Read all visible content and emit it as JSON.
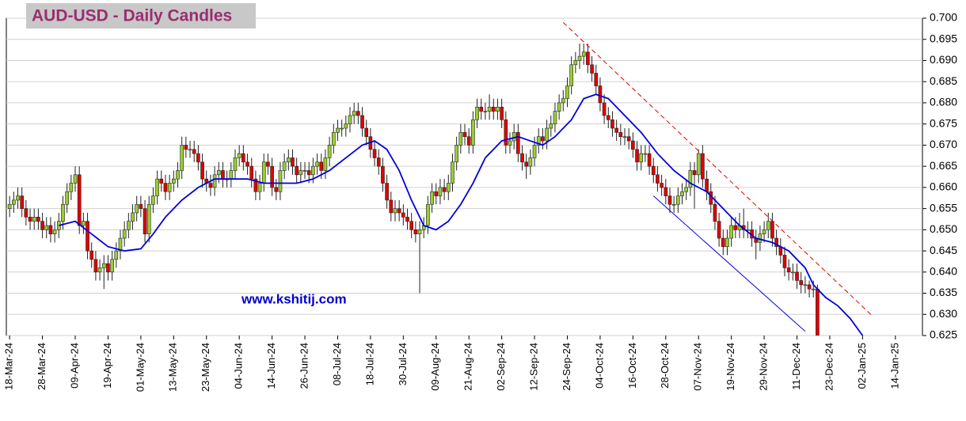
{
  "chart_data": {
    "type": "candlestick",
    "title": "AUD-USD - Daily Candles",
    "annotation": "www.kshitij.com",
    "up_color": "#9acd32",
    "down_color": "#e00000",
    "grid": true,
    "ylim": [
      0.625,
      0.7
    ],
    "yticks": [
      0.625,
      {
        "value": 0.63,
        "label": "0.630"
      },
      0.635,
      {
        "value": 0.64,
        "label": "0.640"
      },
      0.645,
      {
        "value": 0.65,
        "label": "0.650"
      },
      0.655,
      {
        "value": 0.66,
        "label": "0.660"
      },
      0.665,
      {
        "value": 0.67,
        "label": "0.670"
      },
      0.675,
      {
        "value": 0.68,
        "label": "0.680"
      },
      0.685,
      {
        "value": 0.69,
        "label": "0.690"
      },
      0.695,
      {
        "value": 0.7,
        "label": "0.700"
      }
    ],
    "xlim": [
      -0.8,
      222.6
    ],
    "xticks": [
      {
        "value": 0,
        "label": "18-Mar-24"
      },
      {
        "value": 8,
        "label": "28-Mar-24"
      },
      {
        "value": 16,
        "label": "09-Apr-24"
      },
      {
        "value": 24,
        "label": "19-Apr-24"
      },
      {
        "value": 32,
        "label": "01-May-24"
      },
      {
        "value": 40,
        "label": "13-May-24"
      },
      {
        "value": 48,
        "label": "23-May-24"
      },
      {
        "value": 56,
        "label": "04-Jun-24"
      },
      {
        "value": 64,
        "label": "14-Jun-24"
      },
      {
        "value": 72,
        "label": "26-Jun-24"
      },
      {
        "value": 80,
        "label": "08-Jul-24"
      },
      {
        "value": 88,
        "label": "18-Jul-24"
      },
      {
        "value": 96,
        "label": "30-Jul-24"
      },
      {
        "value": 104,
        "label": "09-Aug-24"
      },
      {
        "value": 112,
        "label": "21-Aug-24"
      },
      {
        "value": 120,
        "label": "02-Sep-24"
      },
      {
        "value": 128,
        "label": "12-Sep-24"
      },
      {
        "value": 136,
        "label": "24-Sep-24"
      },
      {
        "value": 144,
        "label": "04-Oct-24"
      },
      {
        "value": 152,
        "label": "16-Oct-24"
      },
      {
        "value": 160,
        "label": "28-Oct-24"
      },
      {
        "value": 168,
        "label": "07-Nov-24"
      },
      {
        "value": 176,
        "label": "19-Nov-24"
      },
      {
        "value": 184,
        "label": "29-Nov-24"
      },
      {
        "value": 192,
        "label": "11-Dec-24"
      },
      {
        "value": 200,
        "label": "23-Dec-24"
      },
      {
        "value": 208,
        "label": "02-Jan-25"
      },
      {
        "value": 216,
        "label": "14-Jan-25"
      }
    ],
    "ohlc": [
      [
        0.655,
        0.658,
        0.653,
        0.656
      ],
      [
        0.656,
        0.659,
        0.654,
        0.657
      ],
      [
        0.657,
        0.66,
        0.655,
        0.658
      ],
      [
        0.658,
        0.66,
        0.653,
        0.655
      ],
      [
        0.655,
        0.657,
        0.651,
        0.653
      ],
      [
        0.653,
        0.655,
        0.65,
        0.652
      ],
      [
        0.652,
        0.655,
        0.65,
        0.653
      ],
      [
        0.653,
        0.655,
        0.65,
        0.652
      ],
      [
        0.652,
        0.654,
        0.648,
        0.65
      ],
      [
        0.65,
        0.653,
        0.648,
        0.651
      ],
      [
        0.651,
        0.653,
        0.647,
        0.649
      ],
      [
        0.649,
        0.652,
        0.647,
        0.65
      ],
      [
        0.65,
        0.654,
        0.648,
        0.652
      ],
      [
        0.652,
        0.658,
        0.65,
        0.656
      ],
      [
        0.656,
        0.661,
        0.654,
        0.659
      ],
      [
        0.659,
        0.663,
        0.657,
        0.661
      ],
      [
        0.661,
        0.665,
        0.659,
        0.663
      ],
      [
        0.663,
        0.665,
        0.649,
        0.651
      ],
      [
        0.651,
        0.654,
        0.649,
        0.652
      ],
      [
        0.652,
        0.654,
        0.643,
        0.645
      ],
      [
        0.645,
        0.647,
        0.641,
        0.643
      ],
      [
        0.643,
        0.645,
        0.638,
        0.64
      ],
      [
        0.64,
        0.643,
        0.638,
        0.641
      ],
      [
        0.641,
        0.644,
        0.636,
        0.642
      ],
      [
        0.642,
        0.644,
        0.638,
        0.64
      ],
      [
        0.64,
        0.645,
        0.638,
        0.643
      ],
      [
        0.643,
        0.647,
        0.641,
        0.645
      ],
      [
        0.645,
        0.65,
        0.643,
        0.648
      ],
      [
        0.648,
        0.652,
        0.646,
        0.65
      ],
      [
        0.65,
        0.654,
        0.648,
        0.652
      ],
      [
        0.652,
        0.656,
        0.65,
        0.654
      ],
      [
        0.654,
        0.658,
        0.652,
        0.656
      ],
      [
        0.656,
        0.658,
        0.653,
        0.655
      ],
      [
        0.655,
        0.657,
        0.647,
        0.649
      ],
      [
        0.649,
        0.658,
        0.647,
        0.656
      ],
      [
        0.656,
        0.66,
        0.654,
        0.658
      ],
      [
        0.658,
        0.664,
        0.656,
        0.662
      ],
      [
        0.662,
        0.664,
        0.659,
        0.661
      ],
      [
        0.661,
        0.663,
        0.657,
        0.659
      ],
      [
        0.659,
        0.663,
        0.657,
        0.661
      ],
      [
        0.661,
        0.664,
        0.659,
        0.662
      ],
      [
        0.662,
        0.666,
        0.66,
        0.664
      ],
      [
        0.664,
        0.672,
        0.662,
        0.67
      ],
      [
        0.67,
        0.672,
        0.667,
        0.669
      ],
      [
        0.669,
        0.671,
        0.667,
        0.669
      ],
      [
        0.669,
        0.671,
        0.666,
        0.668
      ],
      [
        0.668,
        0.67,
        0.664,
        0.666
      ],
      [
        0.666,
        0.668,
        0.66,
        0.662
      ],
      [
        0.662,
        0.664,
        0.659,
        0.661
      ],
      [
        0.661,
        0.663,
        0.658,
        0.66
      ],
      [
        0.66,
        0.665,
        0.658,
        0.663
      ],
      [
        0.663,
        0.666,
        0.661,
        0.664
      ],
      [
        0.664,
        0.666,
        0.66,
        0.662
      ],
      [
        0.662,
        0.664,
        0.66,
        0.662
      ],
      [
        0.662,
        0.666,
        0.66,
        0.664
      ],
      [
        0.664,
        0.669,
        0.662,
        0.667
      ],
      [
        0.667,
        0.67,
        0.665,
        0.668
      ],
      [
        0.668,
        0.67,
        0.664,
        0.666
      ],
      [
        0.666,
        0.668,
        0.663,
        0.665
      ],
      [
        0.665,
        0.667,
        0.66,
        0.662
      ],
      [
        0.662,
        0.664,
        0.657,
        0.659
      ],
      [
        0.659,
        0.663,
        0.657,
        0.661
      ],
      [
        0.661,
        0.668,
        0.659,
        0.666
      ],
      [
        0.666,
        0.668,
        0.663,
        0.665
      ],
      [
        0.665,
        0.667,
        0.658,
        0.66
      ],
      [
        0.66,
        0.662,
        0.657,
        0.659
      ],
      [
        0.659,
        0.666,
        0.657,
        0.664
      ],
      [
        0.664,
        0.668,
        0.662,
        0.666
      ],
      [
        0.666,
        0.669,
        0.664,
        0.667
      ],
      [
        0.667,
        0.669,
        0.663,
        0.665
      ],
      [
        0.665,
        0.667,
        0.661,
        0.663
      ],
      [
        0.663,
        0.666,
        0.661,
        0.664
      ],
      [
        0.664,
        0.666,
        0.662,
        0.664
      ],
      [
        0.664,
        0.666,
        0.661,
        0.663
      ],
      [
        0.663,
        0.667,
        0.661,
        0.665
      ],
      [
        0.665,
        0.668,
        0.663,
        0.666
      ],
      [
        0.666,
        0.668,
        0.662,
        0.664
      ],
      [
        0.664,
        0.669,
        0.662,
        0.667
      ],
      [
        0.667,
        0.672,
        0.665,
        0.67
      ],
      [
        0.67,
        0.675,
        0.668,
        0.673
      ],
      [
        0.673,
        0.676,
        0.671,
        0.674
      ],
      [
        0.674,
        0.676,
        0.672,
        0.674
      ],
      [
        0.674,
        0.677,
        0.672,
        0.675
      ],
      [
        0.675,
        0.679,
        0.673,
        0.677
      ],
      [
        0.677,
        0.68,
        0.675,
        0.678
      ],
      [
        0.678,
        0.68,
        0.675,
        0.677
      ],
      [
        0.677,
        0.679,
        0.672,
        0.674
      ],
      [
        0.674,
        0.676,
        0.67,
        0.672
      ],
      [
        0.672,
        0.674,
        0.667,
        0.669
      ],
      [
        0.669,
        0.671,
        0.665,
        0.667
      ],
      [
        0.667,
        0.669,
        0.663,
        0.665
      ],
      [
        0.665,
        0.667,
        0.659,
        0.661
      ],
      [
        0.661,
        0.663,
        0.655,
        0.657
      ],
      [
        0.657,
        0.659,
        0.652,
        0.654
      ],
      [
        0.654,
        0.657,
        0.652,
        0.655
      ],
      [
        0.655,
        0.657,
        0.652,
        0.654
      ],
      [
        0.654,
        0.656,
        0.651,
        0.653
      ],
      [
        0.653,
        0.655,
        0.65,
        0.652
      ],
      [
        0.652,
        0.654,
        0.648,
        0.65
      ],
      [
        0.65,
        0.652,
        0.647,
        0.649
      ],
      [
        0.649,
        0.652,
        0.635,
        0.65
      ],
      [
        0.65,
        0.653,
        0.648,
        0.651
      ],
      [
        0.651,
        0.658,
        0.649,
        0.656
      ],
      [
        0.656,
        0.661,
        0.654,
        0.659
      ],
      [
        0.659,
        0.661,
        0.656,
        0.658
      ],
      [
        0.658,
        0.662,
        0.656,
        0.66
      ],
      [
        0.66,
        0.662,
        0.657,
        0.659
      ],
      [
        0.659,
        0.663,
        0.657,
        0.661
      ],
      [
        0.661,
        0.668,
        0.659,
        0.666
      ],
      [
        0.666,
        0.672,
        0.664,
        0.67
      ],
      [
        0.67,
        0.675,
        0.668,
        0.673
      ],
      [
        0.673,
        0.675,
        0.67,
        0.672
      ],
      [
        0.672,
        0.674,
        0.668,
        0.67
      ],
      [
        0.67,
        0.678,
        0.668,
        0.676
      ],
      [
        0.676,
        0.681,
        0.674,
        0.679
      ],
      [
        0.679,
        0.681,
        0.676,
        0.678
      ],
      [
        0.678,
        0.68,
        0.676,
        0.678
      ],
      [
        0.678,
        0.682,
        0.676,
        0.679
      ],
      [
        0.679,
        0.681,
        0.676,
        0.678
      ],
      [
        0.678,
        0.681,
        0.676,
        0.679
      ],
      [
        0.679,
        0.681,
        0.674,
        0.676
      ],
      [
        0.676,
        0.678,
        0.668,
        0.67
      ],
      [
        0.67,
        0.673,
        0.668,
        0.671
      ],
      [
        0.671,
        0.675,
        0.669,
        0.673
      ],
      [
        0.673,
        0.675,
        0.666,
        0.668
      ],
      [
        0.668,
        0.67,
        0.664,
        0.666
      ],
      [
        0.666,
        0.668,
        0.662,
        0.665
      ],
      [
        0.665,
        0.669,
        0.663,
        0.667
      ],
      [
        0.667,
        0.672,
        0.665,
        0.67
      ],
      [
        0.67,
        0.674,
        0.668,
        0.672
      ],
      [
        0.672,
        0.674,
        0.669,
        0.671
      ],
      [
        0.671,
        0.676,
        0.669,
        0.674
      ],
      [
        0.674,
        0.677,
        0.672,
        0.675
      ],
      [
        0.675,
        0.68,
        0.673,
        0.678
      ],
      [
        0.678,
        0.682,
        0.676,
        0.68
      ],
      [
        0.68,
        0.683,
        0.678,
        0.681
      ],
      [
        0.681,
        0.686,
        0.679,
        0.684
      ],
      [
        0.684,
        0.691,
        0.682,
        0.689
      ],
      [
        0.689,
        0.692,
        0.687,
        0.69
      ],
      [
        0.69,
        0.694,
        0.688,
        0.691
      ],
      [
        0.691,
        0.694,
        0.689,
        0.692
      ],
      [
        0.692,
        0.694,
        0.687,
        0.689
      ],
      [
        0.689,
        0.691,
        0.685,
        0.687
      ],
      [
        0.687,
        0.689,
        0.682,
        0.684
      ],
      [
        0.684,
        0.686,
        0.678,
        0.68
      ],
      [
        0.68,
        0.682,
        0.675,
        0.677
      ],
      [
        0.677,
        0.679,
        0.674,
        0.676
      ],
      [
        0.676,
        0.678,
        0.672,
        0.674
      ],
      [
        0.674,
        0.676,
        0.671,
        0.673
      ],
      [
        0.673,
        0.675,
        0.67,
        0.672
      ],
      [
        0.672,
        0.674,
        0.67,
        0.672
      ],
      [
        0.672,
        0.674,
        0.669,
        0.671
      ],
      [
        0.671,
        0.673,
        0.667,
        0.669
      ],
      [
        0.669,
        0.671,
        0.664,
        0.666
      ],
      [
        0.666,
        0.67,
        0.664,
        0.668
      ],
      [
        0.668,
        0.67,
        0.666,
        0.668
      ],
      [
        0.668,
        0.67,
        0.663,
        0.665
      ],
      [
        0.665,
        0.667,
        0.661,
        0.663
      ],
      [
        0.663,
        0.665,
        0.659,
        0.661
      ],
      [
        0.661,
        0.663,
        0.658,
        0.66
      ],
      [
        0.66,
        0.662,
        0.656,
        0.658
      ],
      [
        0.658,
        0.66,
        0.654,
        0.656
      ],
      [
        0.656,
        0.658,
        0.654,
        0.656
      ],
      [
        0.656,
        0.66,
        0.654,
        0.658
      ],
      [
        0.658,
        0.661,
        0.656,
        0.659
      ],
      [
        0.659,
        0.662,
        0.657,
        0.66
      ],
      [
        0.66,
        0.666,
        0.658,
        0.664
      ],
      [
        0.664,
        0.666,
        0.655,
        0.663
      ],
      [
        0.663,
        0.669,
        0.661,
        0.668
      ],
      [
        0.668,
        0.67,
        0.66,
        0.662
      ],
      [
        0.662,
        0.664,
        0.657,
        0.659
      ],
      [
        0.659,
        0.661,
        0.654,
        0.656
      ],
      [
        0.656,
        0.658,
        0.65,
        0.652
      ],
      [
        0.652,
        0.654,
        0.646,
        0.648
      ],
      [
        0.648,
        0.65,
        0.644,
        0.646
      ],
      [
        0.646,
        0.65,
        0.644,
        0.648
      ],
      [
        0.648,
        0.653,
        0.646,
        0.651
      ],
      [
        0.651,
        0.653,
        0.648,
        0.65
      ],
      [
        0.65,
        0.654,
        0.648,
        0.651
      ],
      [
        0.651,
        0.655,
        0.648,
        0.65
      ],
      [
        0.65,
        0.652,
        0.648,
        0.65
      ],
      [
        0.65,
        0.652,
        0.646,
        0.648
      ],
      [
        0.648,
        0.65,
        0.643,
        0.647
      ],
      [
        0.647,
        0.651,
        0.645,
        0.649
      ],
      [
        0.649,
        0.652,
        0.647,
        0.65
      ],
      [
        0.65,
        0.654,
        0.648,
        0.652
      ],
      [
        0.652,
        0.654,
        0.646,
        0.648
      ],
      [
        0.648,
        0.65,
        0.644,
        0.646
      ],
      [
        0.646,
        0.648,
        0.642,
        0.644
      ],
      [
        0.644,
        0.646,
        0.639,
        0.641
      ],
      [
        0.641,
        0.643,
        0.638,
        0.64
      ],
      [
        0.64,
        0.642,
        0.638,
        0.64
      ],
      [
        0.64,
        0.642,
        0.636,
        0.638
      ],
      [
        0.638,
        0.64,
        0.635,
        0.637
      ],
      [
        0.637,
        0.639,
        0.635,
        0.637
      ],
      [
        0.637,
        0.638,
        0.634,
        0.636
      ],
      [
        0.636,
        0.638,
        0.634,
        0.636
      ],
      [
        0.636,
        0.637,
        0.625,
        0.625
      ]
    ],
    "moving_average": {
      "color": "#0000dd",
      "x": [
        12,
        16,
        20,
        24,
        28,
        32,
        35,
        38,
        42,
        46,
        50,
        54,
        58,
        62,
        66,
        70,
        74,
        78,
        82,
        86,
        89,
        92,
        95,
        98,
        101,
        104,
        107,
        110,
        113,
        116,
        120,
        124,
        127,
        130,
        133,
        137,
        140,
        143,
        146,
        150,
        154,
        158,
        162,
        166,
        170,
        174,
        178,
        182,
        186,
        190,
        194,
        196,
        199,
        202,
        205,
        208
      ],
      "values": [
        0.651,
        0.652,
        0.649,
        0.646,
        0.645,
        0.6455,
        0.649,
        0.653,
        0.657,
        0.66,
        0.662,
        0.662,
        0.662,
        0.661,
        0.661,
        0.661,
        0.662,
        0.664,
        0.667,
        0.67,
        0.671,
        0.669,
        0.664,
        0.657,
        0.651,
        0.65,
        0.652,
        0.656,
        0.661,
        0.667,
        0.671,
        0.672,
        0.671,
        0.67,
        0.672,
        0.676,
        0.681,
        0.682,
        0.681,
        0.677,
        0.673,
        0.668,
        0.664,
        0.661,
        0.659,
        0.655,
        0.651,
        0.648,
        0.647,
        0.645,
        0.641,
        0.637,
        0.634,
        0.632,
        0.629,
        0.625
      ]
    },
    "trendlines": [
      {
        "color": "#e00000",
        "dashed": true,
        "x": [
          135,
          210
        ],
        "values": [
          0.699,
          0.63
        ]
      },
      {
        "color": "#0000dd",
        "dashed": false,
        "x": [
          157,
          194
        ],
        "values": [
          0.658,
          0.626
        ]
      }
    ]
  }
}
